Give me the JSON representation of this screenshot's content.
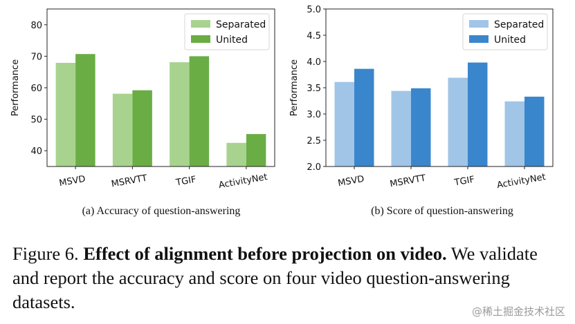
{
  "chart_data": [
    {
      "type": "bar",
      "categories": [
        "MSVD",
        "MSRVTT",
        "TGIF",
        "ActivityNet"
      ],
      "series": [
        {
          "name": "Separated",
          "values": [
            67.9,
            58.1,
            68.1,
            42.5
          ],
          "color": "#a8d38f"
        },
        {
          "name": "United",
          "values": [
            70.7,
            59.2,
            70.0,
            45.3
          ],
          "color": "#6aad45"
        }
      ],
      "ylabel": "Performance",
      "ylim": [
        35,
        85
      ],
      "yticks": [
        "40",
        "50",
        "60",
        "70",
        "80"
      ],
      "ytick_values": [
        40,
        50,
        60,
        70,
        80
      ],
      "legend": "top-right",
      "grid": false,
      "subcaption": "(a) Accuracy of question-answering"
    },
    {
      "type": "bar",
      "categories": [
        "MSVD",
        "MSRVTT",
        "TGIF",
        "ActivityNet"
      ],
      "series": [
        {
          "name": "Separated",
          "values": [
            3.61,
            3.44,
            3.69,
            3.24
          ],
          "color": "#a1c5e7"
        },
        {
          "name": "United",
          "values": [
            3.86,
            3.49,
            3.98,
            3.33
          ],
          "color": "#3a86cc"
        }
      ],
      "ylabel": "Performance",
      "ylim": [
        2.0,
        5.0
      ],
      "yticks": [
        "2.0",
        "2.5",
        "3.0",
        "3.5",
        "4.0",
        "4.5",
        "5.0"
      ],
      "ytick_values": [
        2.0,
        2.5,
        3.0,
        3.5,
        4.0,
        4.5,
        5.0
      ],
      "legend": "top-right",
      "grid": false,
      "subcaption": "(b) Score of question-answering"
    }
  ],
  "caption": {
    "prefix": "Figure 6. ",
    "bold": "Effect of alignment before projection on video.",
    "rest": " We validate and report the accuracy and score on four video question-answering datasets."
  },
  "watermark": "@稀土掘金技术社区"
}
